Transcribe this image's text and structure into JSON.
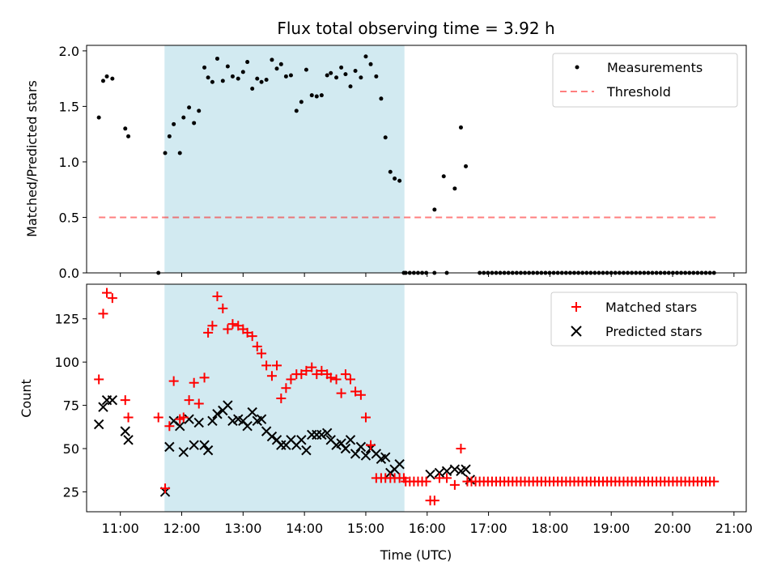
{
  "title": "Flux total observing time = 3.92 h",
  "colors": {
    "shade": "#add8e6",
    "measurements": "#000000",
    "threshold": "#ff0000",
    "matched": "#ff0000",
    "predicted": "#000000"
  },
  "chart_data": [
    {
      "type": "scatter",
      "ylabel": "Matched/Predicted stars",
      "ylim": [
        0,
        2.05
      ],
      "yticks": [
        0.0,
        0.5,
        1.0,
        1.5,
        2.0
      ],
      "ytick_labels": [
        "0.0",
        "0.5",
        "1.0",
        "1.5",
        "2.0"
      ],
      "xlim": [
        10.45,
        21.2
      ],
      "shaded_span": [
        11.72,
        15.63
      ],
      "legend_position": "upper right",
      "legend": [
        "Measurements",
        "Threshold"
      ],
      "threshold": {
        "name": "Threshold",
        "value": 0.5,
        "x_range": [
          10.65,
          20.75
        ]
      },
      "series": [
        {
          "name": "Measurements",
          "x": [
            10.65,
            10.72,
            10.78,
            10.87,
            11.08,
            11.13,
            11.62,
            11.73,
            11.8,
            11.87,
            11.97,
            12.03,
            12.12,
            12.2,
            12.28,
            12.37,
            12.43,
            12.5,
            12.58,
            12.67,
            12.75,
            12.83,
            12.92,
            13.0,
            13.07,
            13.15,
            13.23,
            13.3,
            13.38,
            13.47,
            13.55,
            13.62,
            13.7,
            13.78,
            13.87,
            13.95,
            14.03,
            14.12,
            14.2,
            14.28,
            14.37,
            14.43,
            14.52,
            14.6,
            14.67,
            14.75,
            14.83,
            14.92,
            15.0,
            15.08,
            15.17,
            15.25,
            15.32,
            15.4,
            15.47,
            15.55,
            15.62,
            16.12,
            16.27,
            16.45,
            16.55,
            16.63
          ],
          "y": [
            1.4,
            1.73,
            1.77,
            1.75,
            1.3,
            1.23,
            0.0,
            1.08,
            1.23,
            1.34,
            1.08,
            1.4,
            1.49,
            1.35,
            1.46,
            1.85,
            1.76,
            1.72,
            1.93,
            1.73,
            1.86,
            1.77,
            1.75,
            1.81,
            1.9,
            1.66,
            1.75,
            1.72,
            1.74,
            1.92,
            1.84,
            1.88,
            1.77,
            1.78,
            1.46,
            1.54,
            1.83,
            1.6,
            1.59,
            1.6,
            1.78,
            1.8,
            1.76,
            1.85,
            1.79,
            1.68,
            1.82,
            1.76,
            1.95,
            1.88,
            1.77,
            1.57,
            1.22,
            0.91,
            0.85,
            0.83,
            0.0,
            0.57,
            0.87,
            0.76,
            1.31,
            0.96
          ]
        },
        {
          "name": "Measurements",
          "x_start": 15.65,
          "x_step": 0.067,
          "count": 76,
          "skip_x_ranges": [
            [
              16.05,
              16.1
            ],
            [
              16.18,
              16.26
            ],
            [
              16.36,
              16.41
            ],
            [
              16.43,
              16.8
            ]
          ],
          "y_value": 0
        }
      ]
    },
    {
      "type": "scatter",
      "ylabel": "Count",
      "xlabel": "Time (UTC)",
      "ylim": [
        13.5,
        145
      ],
      "yticks": [
        25,
        50,
        75,
        100,
        125
      ],
      "ytick_labels": [
        "25",
        "50",
        "75",
        "100",
        "125"
      ],
      "xlim": [
        10.45,
        21.2
      ],
      "xticks": [
        11,
        12,
        13,
        14,
        15,
        16,
        17,
        18,
        19,
        20,
        21
      ],
      "xtick_labels": [
        "11:00",
        "12:00",
        "13:00",
        "14:00",
        "15:00",
        "16:00",
        "17:00",
        "18:00",
        "19:00",
        "20:00",
        "21:00"
      ],
      "shaded_span": [
        11.72,
        15.63
      ],
      "legend_position": "upper right",
      "legend": [
        "Matched stars",
        "Predicted stars"
      ],
      "series": [
        {
          "name": "Matched stars",
          "x": [
            10.65,
            10.72,
            10.78,
            10.87,
            11.08,
            11.13,
            11.62,
            11.73,
            11.8,
            11.87,
            11.97,
            12.03,
            12.12,
            12.2,
            12.28,
            12.37,
            12.43,
            12.5,
            12.58,
            12.67,
            12.75,
            12.83,
            12.92,
            13.0,
            13.07,
            13.15,
            13.23,
            13.3,
            13.38,
            13.47,
            13.55,
            13.62,
            13.7,
            13.78,
            13.87,
            13.95,
            14.03,
            14.12,
            14.2,
            14.28,
            14.37,
            14.43,
            14.52,
            14.6,
            14.67,
            14.75,
            14.83,
            14.92,
            15.0,
            15.08,
            15.17,
            15.25,
            15.32,
            15.4,
            15.47,
            15.55,
            15.62,
            16.05,
            16.12,
            16.2,
            16.32,
            16.45,
            16.55
          ],
          "y": [
            90,
            128,
            140,
            137,
            78,
            68,
            68,
            27,
            63,
            89,
            67,
            68,
            78,
            88,
            76,
            91,
            117,
            121,
            138,
            131,
            119,
            122,
            121,
            119,
            117,
            115,
            109,
            105,
            98,
            92,
            98,
            79,
            85,
            90,
            93,
            93,
            95,
            97,
            93,
            95,
            93,
            91,
            90,
            82,
            93,
            90,
            83,
            81,
            68,
            52,
            33,
            33,
            33,
            33,
            33,
            33,
            33,
            20,
            20,
            33,
            33,
            29,
            50
          ]
        },
        {
          "name": "Matched stars",
          "x_start": 15.65,
          "x_step": 0.067,
          "count": 76,
          "skip_x_ranges": [
            [
              16.0,
              16.63
            ]
          ],
          "y_value": 31
        },
        {
          "name": "Predicted stars",
          "x": [
            10.65,
            10.72,
            10.78,
            10.87,
            11.08,
            11.13,
            11.73,
            11.8,
            11.87,
            11.97,
            12.03,
            12.12,
            12.2,
            12.28,
            12.37,
            12.43,
            12.5,
            12.58,
            12.67,
            12.75,
            12.83,
            12.92,
            13.0,
            13.07,
            13.15,
            13.23,
            13.3,
            13.38,
            13.47,
            13.55,
            13.62,
            13.7,
            13.78,
            13.87,
            13.95,
            14.03,
            14.12,
            14.2,
            14.28,
            14.37,
            14.43,
            14.52,
            14.6,
            14.67,
            14.75,
            14.83,
            14.92,
            15.0,
            15.08,
            15.17,
            15.25,
            15.32,
            15.4,
            15.47,
            15.55,
            16.05,
            16.2,
            16.32,
            16.45,
            16.55,
            16.63,
            16.7
          ],
          "y": [
            64,
            74,
            78,
            78,
            60,
            55,
            25,
            51,
            66,
            63,
            48,
            67,
            52,
            65,
            52,
            49,
            66,
            70,
            72,
            75,
            66,
            67,
            66,
            63,
            71,
            66,
            67,
            60,
            57,
            55,
            52,
            52,
            55,
            52,
            55,
            49,
            58,
            58,
            58,
            59,
            55,
            52,
            53,
            50,
            55,
            47,
            51,
            46,
            50,
            47,
            44,
            45,
            36,
            38,
            41,
            35,
            36,
            37,
            38,
            37,
            38,
            32
          ]
        }
      ]
    }
  ]
}
